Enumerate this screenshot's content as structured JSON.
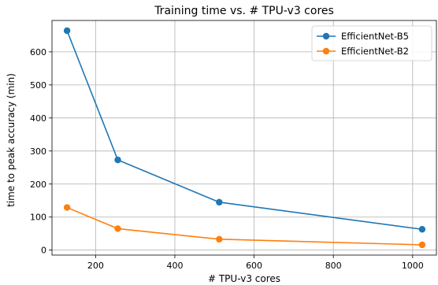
{
  "chart_data": {
    "type": "line",
    "title": "Training time vs. # TPU-v3 cores",
    "xlabel": "# TPU-v3 cores",
    "ylabel": "time to peak accuracy (min)",
    "xlim": [
      90,
      1060
    ],
    "ylim": [
      -15,
      695
    ],
    "xticks": [
      200,
      400,
      600,
      800,
      1000
    ],
    "yticks": [
      0,
      100,
      200,
      300,
      400,
      500,
      600
    ],
    "grid": true,
    "legend": "top-right",
    "series": [
      {
        "name": "EfficientNet-B5",
        "color": "#1f77b4",
        "x": [
          128,
          256,
          512,
          1024
        ],
        "y": [
          664,
          273,
          145,
          63
        ]
      },
      {
        "name": "EfficientNet-B2",
        "color": "#ff7f0e",
        "x": [
          128,
          256,
          512,
          1024
        ],
        "y": [
          129,
          65,
          33,
          16
        ]
      }
    ]
  }
}
